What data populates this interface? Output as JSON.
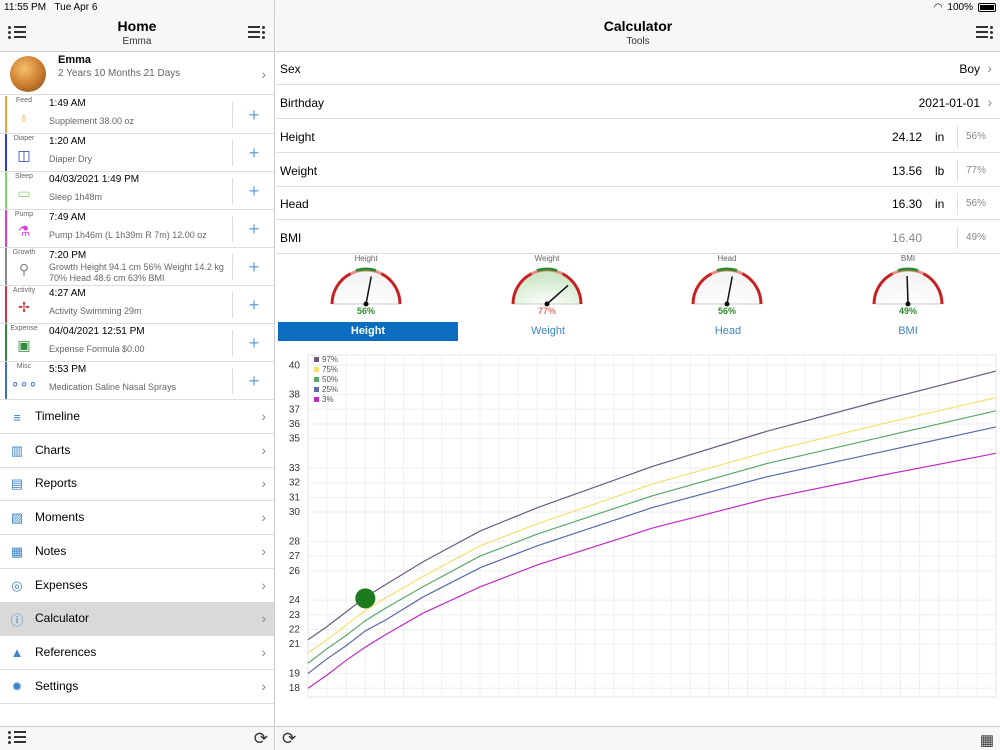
{
  "status": {
    "time": "11:55 PM",
    "date": "Tue Apr 6",
    "battery": "100%"
  },
  "left": {
    "title": "Home",
    "subtitle": "Emma",
    "profile": {
      "name": "Emma",
      "age": "2 Years 10 Months 21 Days"
    },
    "events": [
      {
        "category": "Feed",
        "time": "1:49 AM",
        "desc": "Supplement 38.00 oz",
        "color": "#f0a23c",
        "icon": "bottle-icon"
      },
      {
        "category": "Diaper",
        "time": "1:20 AM",
        "desc": "Diaper Dry",
        "color": "#2a3fb8",
        "icon": "diaper-icon"
      },
      {
        "category": "Sleep",
        "time": "04/03/2021 1:49 PM",
        "desc": "Sleep 1h48m",
        "color": "#7ed96a",
        "icon": "crib-icon"
      },
      {
        "category": "Pump",
        "time": "7:49 AM",
        "desc": "Pump 1h46m (L 1h39m R 7m) 12.00 oz",
        "color": "#e23ce0",
        "icon": "pump-icon"
      },
      {
        "category": "Growth",
        "time": "7:20 PM",
        "desc": "Growth Height 94.1 cm 56% Weight 14.2 kg 70% Head 48.6 cm 63% BMI",
        "color": "#888888",
        "icon": "growth-icon"
      },
      {
        "category": "Activity",
        "time": "4:27 AM",
        "desc": "Activity Swimming 29m",
        "color": "#d13a3a",
        "icon": "pinwheel-icon"
      },
      {
        "category": "Expense",
        "time": "04/04/2021 12:51 PM",
        "desc": "Expense Formula $0.00",
        "color": "#2e8b3a",
        "icon": "money-icon"
      },
      {
        "category": "Misc",
        "time": "5:53 PM",
        "desc": "Medication Saline Nasal Sprays",
        "color": "#3d6fd6",
        "icon": "dots-icon"
      }
    ],
    "menu": [
      {
        "label": "Timeline",
        "icon": "timeline-icon",
        "glyph": "≡"
      },
      {
        "label": "Charts",
        "icon": "chart-icon",
        "glyph": "▥"
      },
      {
        "label": "Reports",
        "icon": "report-icon",
        "glyph": "▤"
      },
      {
        "label": "Moments",
        "icon": "photo-icon",
        "glyph": "▨"
      },
      {
        "label": "Notes",
        "icon": "notes-icon",
        "glyph": "▦"
      },
      {
        "label": "Expenses",
        "icon": "coins-icon",
        "glyph": "◎"
      },
      {
        "label": "Calculator",
        "icon": "info-icon",
        "glyph": "ⓘ"
      },
      {
        "label": "References",
        "icon": "graduation-cap-icon",
        "glyph": "▲"
      },
      {
        "label": "Settings",
        "icon": "gear-icon",
        "glyph": "✹"
      }
    ],
    "selected_menu": "Calculator"
  },
  "right": {
    "title": "Calculator",
    "subtitle": "Tools",
    "sex": {
      "label": "Sex",
      "value": "Boy"
    },
    "birthday": {
      "label": "Birthday",
      "value": "2021-01-01"
    },
    "measures": [
      {
        "label": "Height",
        "value": "24.12",
        "unit": "in",
        "pct": "56%"
      },
      {
        "label": "Weight",
        "value": "13.56",
        "unit": "lb",
        "pct": "77%"
      },
      {
        "label": "Head",
        "value": "16.30",
        "unit": "in",
        "pct": "56%"
      },
      {
        "label": "BMI",
        "value": "16.40",
        "unit": "",
        "pct": "49%"
      }
    ],
    "gauges": [
      {
        "label": "Height",
        "pct": "56%",
        "value": 0.56,
        "color": "#2e8b2e"
      },
      {
        "label": "Weight",
        "pct": "77%",
        "value": 0.77,
        "color": "#e07a70"
      },
      {
        "label": "Head",
        "pct": "56%",
        "value": 0.56,
        "color": "#2e8b2e"
      },
      {
        "label": "BMI",
        "pct": "49%",
        "value": 0.49,
        "color": "#2e8b2e"
      }
    ],
    "tabs": [
      "Height",
      "Weight",
      "Head",
      "BMI"
    ],
    "selected_tab": "Height"
  },
  "chart_data": {
    "type": "line",
    "yticks": [
      18,
      19,
      21,
      22,
      23,
      24,
      26,
      27,
      28,
      30,
      31,
      32,
      33,
      35,
      36,
      37,
      38,
      40
    ],
    "ytick_labels": [
      "18",
      "19",
      "21",
      "22",
      "23",
      "24",
      "26",
      "27",
      "28",
      "30",
      "31",
      "32",
      "33",
      "35",
      "36",
      "37",
      "38",
      "40"
    ],
    "ylim": [
      17.4,
      40.7
    ],
    "xlim": [
      0,
      36
    ],
    "legend_position": "top-left",
    "grid": true,
    "series": [
      {
        "name": "97%",
        "color": "#6e5a7e",
        "points": [
          [
            0,
            21.3
          ],
          [
            1,
            22.2
          ],
          [
            2,
            23.2
          ],
          [
            3,
            24.2
          ],
          [
            4,
            25.0
          ],
          [
            6,
            26.6
          ],
          [
            9,
            28.7
          ],
          [
            12,
            30.3
          ],
          [
            18,
            33.1
          ],
          [
            24,
            35.5
          ],
          [
            30,
            37.6
          ],
          [
            36,
            39.6
          ]
        ]
      },
      {
        "name": "75%",
        "color": "#f5e070",
        "points": [
          [
            0,
            20.4
          ],
          [
            1,
            21.3
          ],
          [
            2,
            22.3
          ],
          [
            3,
            23.3
          ],
          [
            4,
            24.1
          ],
          [
            6,
            25.6
          ],
          [
            9,
            27.7
          ],
          [
            12,
            29.2
          ],
          [
            18,
            31.9
          ],
          [
            24,
            34.1
          ],
          [
            30,
            36.0
          ],
          [
            36,
            37.8
          ]
        ]
      },
      {
        "name": "50%",
        "color": "#5aa86a",
        "points": [
          [
            0,
            19.7
          ],
          [
            1,
            20.7
          ],
          [
            2,
            21.6
          ],
          [
            3,
            22.6
          ],
          [
            4,
            23.4
          ],
          [
            6,
            24.9
          ],
          [
            9,
            27.0
          ],
          [
            12,
            28.5
          ],
          [
            18,
            31.1
          ],
          [
            24,
            33.3
          ],
          [
            30,
            35.1
          ],
          [
            36,
            36.9
          ]
        ]
      },
      {
        "name": "25%",
        "color": "#5a6aa8",
        "points": [
          [
            0,
            19.0
          ],
          [
            1,
            20.0
          ],
          [
            2,
            20.9
          ],
          [
            3,
            21.9
          ],
          [
            4,
            22.6
          ],
          [
            6,
            24.2
          ],
          [
            9,
            26.2
          ],
          [
            12,
            27.7
          ],
          [
            18,
            30.3
          ],
          [
            24,
            32.4
          ],
          [
            30,
            34.1
          ],
          [
            36,
            35.8
          ]
        ]
      },
      {
        "name": "3%",
        "color": "#c02ac8",
        "points": [
          [
            0,
            18.0
          ],
          [
            1,
            18.9
          ],
          [
            2,
            19.9
          ],
          [
            3,
            20.8
          ],
          [
            4,
            21.6
          ],
          [
            6,
            23.1
          ],
          [
            9,
            24.9
          ],
          [
            12,
            26.4
          ],
          [
            18,
            28.9
          ],
          [
            24,
            30.9
          ],
          [
            30,
            32.5
          ],
          [
            36,
            34.0
          ]
        ]
      }
    ],
    "marker": {
      "x": 3,
      "y": 24.12,
      "color": "#1e7a1e"
    }
  }
}
